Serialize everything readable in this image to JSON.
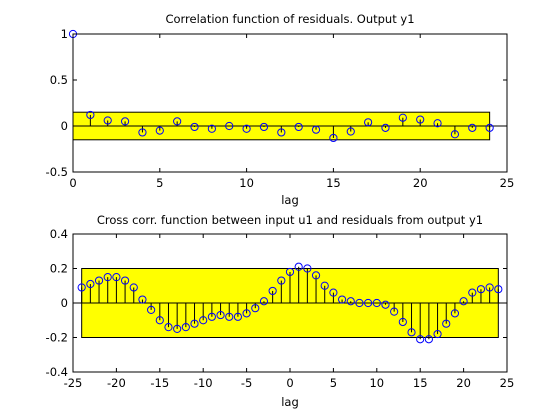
{
  "chart_data": [
    {
      "type": "stem",
      "title": "Correlation function of residuals. Output y1",
      "xlabel": "lag",
      "xlim": [
        0,
        25
      ],
      "ylim": [
        -0.5,
        1
      ],
      "xticks": [
        0,
        5,
        10,
        15,
        20,
        25
      ],
      "yticks": [
        -0.5,
        0,
        0.5,
        1
      ],
      "confidence_band": [
        -0.15,
        0.15
      ],
      "band_color": "#ffff00",
      "marker_color": "#0000ff",
      "x": [
        0,
        1,
        2,
        3,
        4,
        5,
        6,
        7,
        8,
        9,
        10,
        11,
        12,
        13,
        14,
        15,
        16,
        17,
        18,
        19,
        20,
        21,
        22,
        23,
        24
      ],
      "y": [
        1.0,
        0.12,
        0.06,
        0.05,
        -0.07,
        -0.05,
        0.05,
        -0.01,
        -0.03,
        0.0,
        -0.03,
        -0.01,
        -0.07,
        -0.01,
        -0.04,
        -0.13,
        -0.06,
        0.04,
        -0.02,
        0.09,
        0.07,
        0.03,
        -0.09,
        -0.02,
        -0.02
      ]
    },
    {
      "type": "stem",
      "title": "Cross corr. function between input u1 and residuals from output y1",
      "xlabel": "lag",
      "xlim": [
        -25,
        25
      ],
      "ylim": [
        -0.4,
        0.4
      ],
      "xticks": [
        -25,
        -20,
        -15,
        -10,
        -5,
        0,
        5,
        10,
        15,
        20,
        25
      ],
      "yticks": [
        -0.4,
        -0.2,
        0,
        0.2,
        0.4
      ],
      "confidence_band": [
        -0.2,
        0.2
      ],
      "band_color": "#ffff00",
      "marker_color": "#0000ff",
      "x": [
        -24,
        -23,
        -22,
        -21,
        -20,
        -19,
        -18,
        -17,
        -16,
        -15,
        -14,
        -13,
        -12,
        -11,
        -10,
        -9,
        -8,
        -7,
        -6,
        -5,
        -4,
        -3,
        -2,
        -1,
        0,
        1,
        2,
        3,
        4,
        5,
        6,
        7,
        8,
        9,
        10,
        11,
        12,
        13,
        14,
        15,
        16,
        17,
        18,
        19,
        20,
        21,
        22,
        23,
        24
      ],
      "y": [
        0.09,
        0.11,
        0.13,
        0.15,
        0.15,
        0.13,
        0.09,
        0.02,
        -0.04,
        -0.1,
        -0.14,
        -0.15,
        -0.14,
        -0.12,
        -0.1,
        -0.08,
        -0.07,
        -0.08,
        -0.08,
        -0.06,
        -0.03,
        0.01,
        0.07,
        0.13,
        0.18,
        0.21,
        0.2,
        0.16,
        0.1,
        0.06,
        0.02,
        0.01,
        0.0,
        0.0,
        0.0,
        -0.01,
        -0.05,
        -0.11,
        -0.17,
        -0.21,
        -0.21,
        -0.18,
        -0.12,
        -0.06,
        0.01,
        0.06,
        0.08,
        0.09,
        0.08
      ]
    }
  ]
}
